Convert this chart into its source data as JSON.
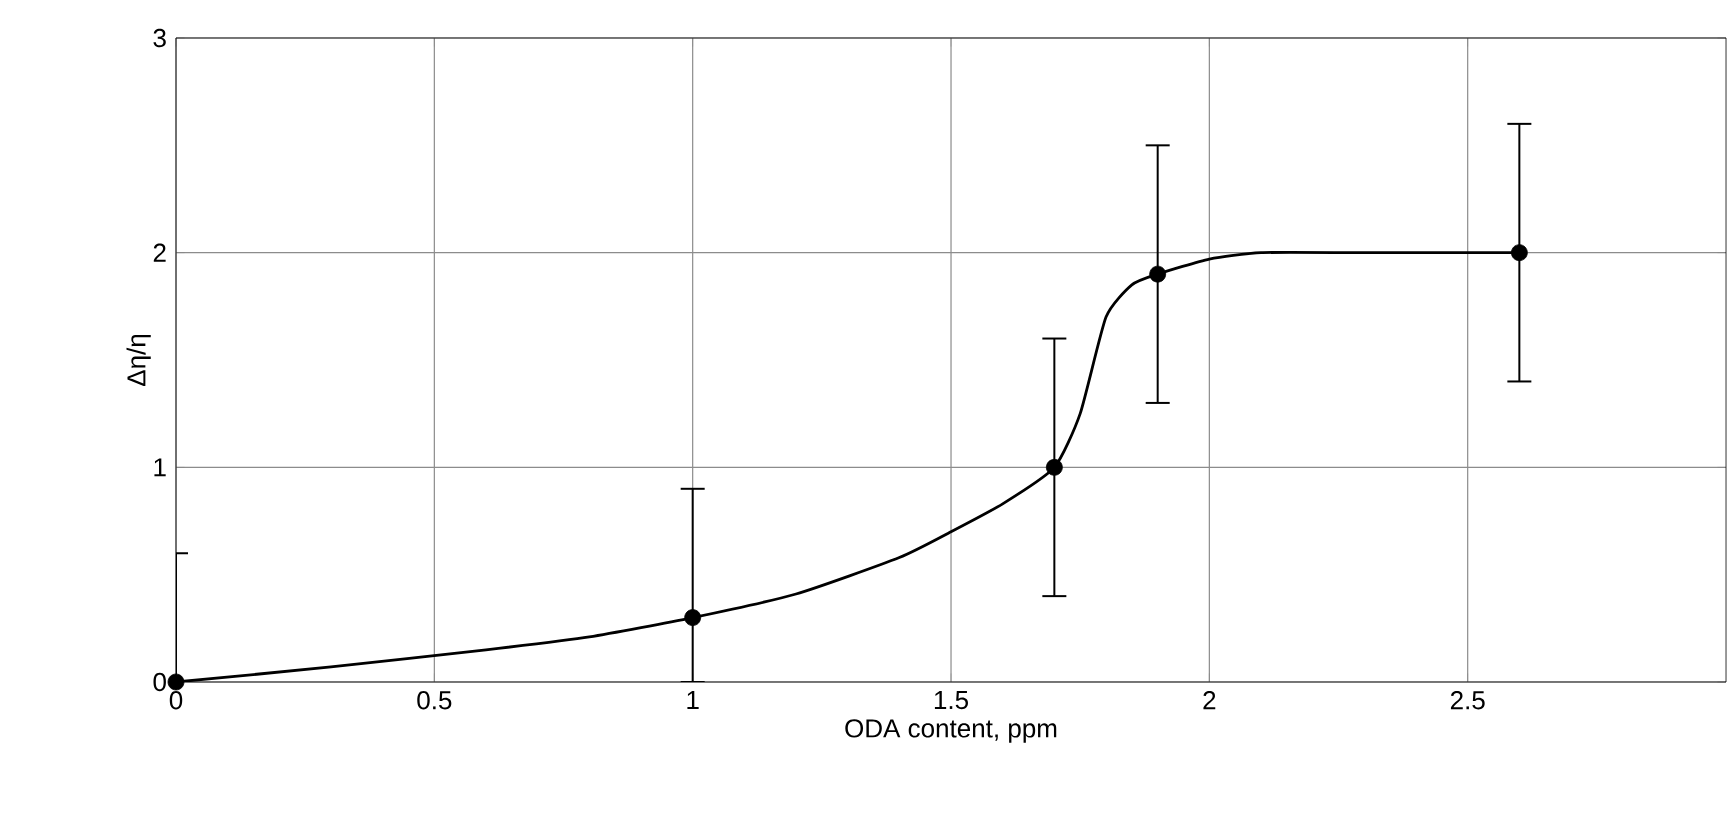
{
  "chart_data": {
    "type": "line",
    "xlabel": "ODA content, ppm",
    "ylabel": "Δη/η",
    "xlim": [
      0,
      3
    ],
    "ylim": [
      0,
      3
    ],
    "xticks": [
      0,
      0.5,
      1,
      1.5,
      2,
      2.5
    ],
    "yticks": [
      0,
      1,
      2,
      3
    ],
    "grid": true,
    "series": [
      {
        "color": "#000000",
        "marker": "none",
        "x": [
          0,
          0.3,
          0.6,
          0.8,
          1,
          1.2,
          1.4,
          1.5,
          1.6,
          1.7,
          1.75,
          1.8,
          1.85,
          1.9,
          2.0,
          2.1,
          2.3,
          2.6
        ],
        "values": [
          0,
          0.07,
          0.15,
          0.21,
          0.3,
          0.41,
          0.58,
          0.7,
          0.83,
          1.0,
          1.25,
          1.7,
          1.85,
          1.9,
          1.97,
          2.0,
          2.0,
          2.0
        ]
      },
      {
        "type": "scatter",
        "color": "#000000",
        "marker": "circle",
        "x": [
          0,
          1,
          1.7,
          1.9,
          2.6
        ],
        "values": [
          0,
          0.3,
          1.0,
          1.9,
          2.0
        ],
        "errors": [
          [
            0,
            0.6
          ],
          [
            0,
            0.9
          ],
          [
            0.4,
            1.6
          ],
          [
            1.3,
            2.5
          ],
          [
            1.4,
            2.6
          ]
        ]
      }
    ]
  }
}
